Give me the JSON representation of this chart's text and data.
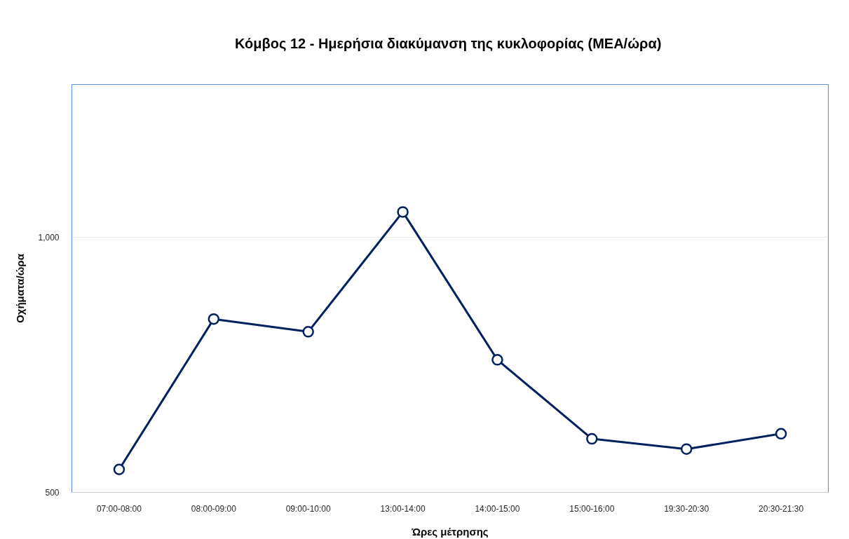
{
  "chart_data": {
    "type": "line",
    "title": "Κόμβος 12 -  Ημερήσια διακύμανση της κυκλοφορίας (ΜΕΑ/ώρα)",
    "xlabel": "Ώρες μέτρησης",
    "ylabel": "Οχήματα/ώρα",
    "categories": [
      "07:00-08:00",
      "08:00-09:00",
      "09:00-10:00",
      "13:00-14:00",
      "14:00-15:00",
      "15:00-16:00",
      "19:30-20:30",
      "20:30-21:30"
    ],
    "series": [
      {
        "color": "#002060",
        "values": [
          545,
          840,
          815,
          1050,
          760,
          605,
          585,
          615
        ]
      }
    ],
    "ylim": [
      500,
      1300
    ],
    "yticks": [
      500,
      {
        "value": 1000,
        "label": "1,000"
      }
    ],
    "grid": "y",
    "marker": "circle",
    "line_style": "solid"
  }
}
